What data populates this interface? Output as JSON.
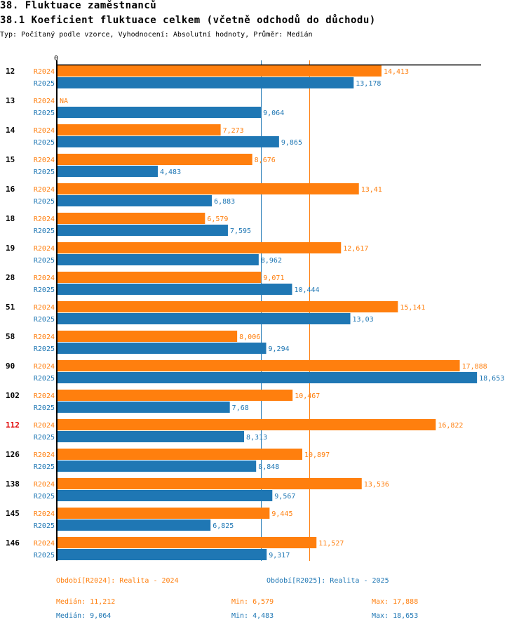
{
  "header": {
    "title": "38. Fluktuace zaměstnanců",
    "subtitle": "38.1 Koeficient fluktuace celkem (včetně odchodů do důchodu)",
    "description": "Typ: Počítaný podle vzorce, Vyhodnocení: Absolutní hodnoty, Průměr: Medián"
  },
  "colors": {
    "R2024": "#ff7f0e",
    "R2025": "#1f77b4",
    "highlight": "#e00000",
    "axis": "#000000"
  },
  "chart_data": {
    "type": "bar",
    "orientation": "horizontal",
    "title": "38.1 Koeficient fluktuace celkem (včetně odchodů do důchodu)",
    "xlabel": "",
    "ylabel": "",
    "x_tick_labels": [
      "0"
    ],
    "xlim": [
      0,
      18.9
    ],
    "grid": false,
    "categories": [
      "12",
      "13",
      "14",
      "15",
      "16",
      "18",
      "19",
      "28",
      "51",
      "58",
      "90",
      "102",
      "112",
      "126",
      "138",
      "145",
      "146"
    ],
    "highlighted_category": "112",
    "series": [
      {
        "name": "R2024",
        "values": [
          14.413,
          null,
          7.273,
          8.676,
          13.41,
          6.579,
          12.617,
          9.071,
          15.141,
          8.006,
          17.888,
          10.467,
          16.822,
          10.897,
          13.536,
          9.445,
          11.527
        ],
        "labels": [
          "14,413",
          "NA",
          "7,273",
          "8,676",
          "13,41",
          "6,579",
          "12,617",
          "9,071",
          "15,141",
          "8,006",
          "17,888",
          "10,467",
          "16,822",
          "10,897",
          "13,536",
          "9,445",
          "11,527"
        ],
        "median": 11.212
      },
      {
        "name": "R2025",
        "values": [
          13.178,
          9.064,
          9.865,
          4.483,
          6.883,
          7.595,
          8.962,
          10.444,
          13.03,
          9.294,
          18.653,
          7.68,
          8.313,
          8.848,
          9.567,
          6.825,
          9.317
        ],
        "labels": [
          "13,178",
          "9,064",
          "9,865",
          "4,483",
          "6,883",
          "7,595",
          "8,962",
          "10,444",
          "13,03",
          "9,294",
          "18,653",
          "7,68",
          "8,313",
          "8,848",
          "9,567",
          "6,825",
          "9,317"
        ],
        "median": 9.064
      }
    ],
    "reference_lines": [
      {
        "series": "R2024",
        "type": "median",
        "value": 11.212
      },
      {
        "series": "R2025",
        "type": "median",
        "value": 9.064
      }
    ]
  },
  "legend": {
    "period_2024": "Období[R2024]: Realita - 2024",
    "period_2025": "Období[R2025]: Realita - 2025"
  },
  "stats": {
    "R2024": {
      "median": "Medián: 11,212",
      "min": "Min: 6,579",
      "max": "Max: 17,888"
    },
    "R2025": {
      "median": "Medián: 9,064",
      "min": "Min: 4,483",
      "max": "Max: 18,653"
    }
  }
}
